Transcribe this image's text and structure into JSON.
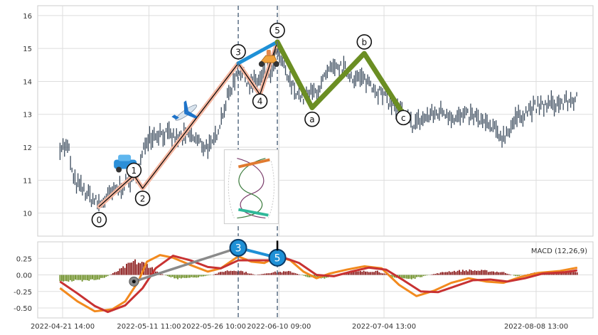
{
  "chart_data": [
    {
      "type": "candlestick",
      "ylim": [
        9.3,
        16.3
      ],
      "yticks": [
        10,
        11,
        12,
        13,
        14,
        15,
        16
      ],
      "ytick_labels": [
        "10",
        "11",
        "12",
        "13",
        "14",
        "15",
        "16"
      ],
      "grid": true,
      "x_range": [
        "2022-04-21 14:00",
        "2022-08-28 00:00"
      ],
      "price_trace": [
        [
          "2022-04-21",
          12.05
        ],
        [
          "2022-04-23",
          11.95
        ],
        [
          "2022-04-24",
          11.0
        ],
        [
          "2022-04-27",
          10.6
        ],
        [
          "2022-04-30",
          10.25
        ],
        [
          "2022-05-03",
          10.6
        ],
        [
          "2022-05-07",
          11.0
        ],
        [
          "2022-05-09",
          11.25
        ],
        [
          "2022-05-11",
          12.3
        ],
        [
          "2022-05-14",
          12.45
        ],
        [
          "2022-05-18",
          12.25
        ],
        [
          "2022-05-21",
          12.35
        ],
        [
          "2022-05-24",
          12.05
        ],
        [
          "2022-05-26",
          12.0
        ],
        [
          "2022-05-29",
          13.3
        ],
        [
          "2022-06-01",
          14.4
        ],
        [
          "2022-06-04",
          13.9
        ],
        [
          "2022-06-07",
          14.15
        ],
        [
          "2022-06-09",
          14.3
        ],
        [
          "2022-06-10",
          14.9
        ],
        [
          "2022-06-13",
          13.9
        ],
        [
          "2022-06-16",
          13.5
        ],
        [
          "2022-06-19",
          13.7
        ],
        [
          "2022-06-22",
          14.3
        ],
        [
          "2022-06-25",
          14.4
        ],
        [
          "2022-06-28",
          14.1
        ],
        [
          "2022-07-01",
          14.0
        ],
        [
          "2022-07-04",
          13.6
        ],
        [
          "2022-07-08",
          13.1
        ],
        [
          "2022-07-11",
          12.7
        ],
        [
          "2022-07-15",
          12.95
        ],
        [
          "2022-07-18",
          13.1
        ],
        [
          "2022-07-21",
          12.9
        ],
        [
          "2022-07-25",
          12.95
        ],
        [
          "2022-07-29",
          12.6
        ],
        [
          "2022-08-01",
          12.3
        ],
        [
          "2022-08-03",
          12.7
        ],
        [
          "2022-08-05",
          13.0
        ],
        [
          "2022-08-08",
          13.2
        ],
        [
          "2022-08-12",
          13.3
        ],
        [
          "2022-08-15",
          13.35
        ],
        [
          "2022-08-18",
          13.5
        ]
      ],
      "wave_lines": [
        {
          "color": "#f4b6a0",
          "width": 6,
          "points": [
            [
              "2022-04-30",
              10.2
            ],
            [
              "2022-05-08",
              11.15
            ],
            [
              "2022-05-10",
              10.75
            ],
            [
              "2022-06-01",
              14.55
            ],
            [
              "2022-06-06",
              13.6
            ],
            [
              "2022-06-10",
              15.2
            ]
          ]
        },
        {
          "color": "#000000",
          "width": 1.2,
          "points": [
            [
              "2022-04-30",
              10.2
            ],
            [
              "2022-05-08",
              11.15
            ],
            [
              "2022-05-10",
              10.75
            ],
            [
              "2022-06-01",
              14.55
            ],
            [
              "2022-06-06",
              13.6
            ],
            [
              "2022-06-10",
              15.2
            ]
          ]
        },
        {
          "color": "#1e90d6",
          "width": 5,
          "points": [
            [
              "2022-06-01",
              14.55
            ],
            [
              "2022-06-10",
              15.2
            ]
          ]
        },
        {
          "color": "#6b8e23",
          "width": 7,
          "points": [
            [
              "2022-06-10",
              15.2
            ],
            [
              "2022-06-18",
              13.2
            ],
            [
              "2022-06-30",
              14.85
            ],
            [
              "2022-07-09",
              13.0
            ]
          ]
        }
      ],
      "wave_labels": [
        {
          "text": "0",
          "x": "2022-04-30",
          "y": 9.8
        },
        {
          "text": "1",
          "x": "2022-05-08",
          "y": 11.3
        },
        {
          "text": "2",
          "x": "2022-05-10",
          "y": 10.45
        },
        {
          "text": "3",
          "x": "2022-06-01",
          "y": 14.9
        },
        {
          "text": "4",
          "x": "2022-06-06",
          "y": 13.4
        },
        {
          "text": "5",
          "x": "2022-06-10",
          "y": 15.55
        },
        {
          "text": "a",
          "x": "2022-06-18",
          "y": 12.85
        },
        {
          "text": "b",
          "x": "2022-06-30",
          "y": 15.2
        },
        {
          "text": "c",
          "x": "2022-07-09",
          "y": 12.9
        }
      ],
      "vlines": [
        "2022-06-01",
        "2022-06-10"
      ],
      "icons": [
        {
          "name": "car-icon",
          "x": "2022-05-06",
          "y": 11.45
        },
        {
          "name": "airplane-icon",
          "x": "2022-05-20",
          "y": 13.05
        },
        {
          "name": "scooter-icon",
          "x": "2022-06-08",
          "y": 14.7
        },
        {
          "name": "helix-diagram-icon",
          "x": "2022-06-04",
          "y": 10.8
        }
      ]
    },
    {
      "type": "macd",
      "title": "MACD (12,26,9)",
      "ylim": [
        -0.65,
        0.5
      ],
      "yticks": [
        -0.5,
        -0.25,
        0.0,
        0.25
      ],
      "ytick_labels": [
        "-0.50",
        "-0.25",
        "0.00",
        "0.25"
      ],
      "grid": true,
      "xticks": [
        "2022-04-21 14:00",
        "2022-05-11 11:00",
        "2022-05-26 10:00",
        "2022-06-10 09:00",
        "2022-07-04 13:00",
        "2022-08-08 13:00"
      ],
      "xtick_labels": [
        "2022-04-21 14:00",
        "2022-05-11 11:00",
        "2022-05-26 10:00",
        "2022-06-10 09:00",
        "2022-07-04 13:00",
        "2022-08-08 13:00"
      ],
      "macd_line": [
        [
          "2022-04-21",
          -0.2
        ],
        [
          "2022-04-25",
          -0.4
        ],
        [
          "2022-04-29",
          -0.55
        ],
        [
          "2022-05-03",
          -0.52
        ],
        [
          "2022-05-06",
          -0.4
        ],
        [
          "2022-05-09",
          -0.1
        ],
        [
          "2022-05-11",
          0.2
        ],
        [
          "2022-05-14",
          0.3
        ],
        [
          "2022-05-17",
          0.26
        ],
        [
          "2022-05-21",
          0.15
        ],
        [
          "2022-05-25",
          0.05
        ],
        [
          "2022-05-28",
          0.1
        ],
        [
          "2022-06-01",
          0.28
        ],
        [
          "2022-06-04",
          0.2
        ],
        [
          "2022-06-07",
          0.18
        ],
        [
          "2022-06-10",
          0.28
        ],
        [
          "2022-06-13",
          0.22
        ],
        [
          "2022-06-16",
          0.05
        ],
        [
          "2022-06-19",
          -0.05
        ],
        [
          "2022-06-22",
          0.02
        ],
        [
          "2022-06-26",
          0.08
        ],
        [
          "2022-06-30",
          0.13
        ],
        [
          "2022-07-04",
          0.1
        ],
        [
          "2022-07-08",
          -0.15
        ],
        [
          "2022-07-12",
          -0.32
        ],
        [
          "2022-07-16",
          -0.24
        ],
        [
          "2022-07-20",
          -0.12
        ],
        [
          "2022-07-24",
          -0.05
        ],
        [
          "2022-07-28",
          -0.1
        ],
        [
          "2022-08-01",
          -0.12
        ],
        [
          "2022-08-05",
          -0.03
        ],
        [
          "2022-08-09",
          0.03
        ],
        [
          "2022-08-14",
          0.06
        ],
        [
          "2022-08-18",
          0.11
        ]
      ],
      "signal_line": [
        [
          "2022-04-21",
          -0.1
        ],
        [
          "2022-04-25",
          -0.28
        ],
        [
          "2022-04-29",
          -0.47
        ],
        [
          "2022-05-02",
          -0.56
        ],
        [
          "2022-05-06",
          -0.46
        ],
        [
          "2022-05-10",
          -0.2
        ],
        [
          "2022-05-13",
          0.1
        ],
        [
          "2022-05-17",
          0.29
        ],
        [
          "2022-05-21",
          0.22
        ],
        [
          "2022-05-25",
          0.12
        ],
        [
          "2022-05-28",
          0.1
        ],
        [
          "2022-06-01",
          0.22
        ],
        [
          "2022-06-05",
          0.22
        ],
        [
          "2022-06-09",
          0.22
        ],
        [
          "2022-06-12",
          0.25
        ],
        [
          "2022-06-15",
          0.18
        ],
        [
          "2022-06-19",
          0.0
        ],
        [
          "2022-06-23",
          -0.02
        ],
        [
          "2022-06-27",
          0.05
        ],
        [
          "2022-07-01",
          0.11
        ],
        [
          "2022-07-05",
          0.08
        ],
        [
          "2022-07-09",
          -0.08
        ],
        [
          "2022-07-13",
          -0.25
        ],
        [
          "2022-07-17",
          -0.26
        ],
        [
          "2022-07-21",
          -0.17
        ],
        [
          "2022-07-25",
          -0.08
        ],
        [
          "2022-07-29",
          -0.07
        ],
        [
          "2022-08-02",
          -0.1
        ],
        [
          "2022-08-06",
          -0.05
        ],
        [
          "2022-08-10",
          0.02
        ],
        [
          "2022-08-15",
          0.04
        ],
        [
          "2022-08-18",
          0.07
        ]
      ],
      "histogram_envelope": [
        [
          "2022-04-21",
          -0.08
        ],
        [
          "2022-04-26",
          -0.1
        ],
        [
          "2022-05-01",
          -0.05
        ],
        [
          "2022-05-04",
          0.05
        ],
        [
          "2022-05-08",
          0.2
        ],
        [
          "2022-05-11",
          0.16
        ],
        [
          "2022-05-14",
          0.02
        ],
        [
          "2022-05-18",
          -0.06
        ],
        [
          "2022-05-22",
          -0.04
        ],
        [
          "2022-05-26",
          0.0
        ],
        [
          "2022-05-29",
          0.06
        ],
        [
          "2022-06-01",
          0.07
        ],
        [
          "2022-06-05",
          0.0
        ],
        [
          "2022-06-09",
          0.04
        ],
        [
          "2022-06-13",
          0.05
        ],
        [
          "2022-06-17",
          -0.03
        ],
        [
          "2022-06-21",
          -0.05
        ],
        [
          "2022-06-25",
          0.03
        ],
        [
          "2022-06-29",
          0.05
        ],
        [
          "2022-07-03",
          0.06
        ],
        [
          "2022-07-07",
          -0.04
        ],
        [
          "2022-07-11",
          -0.06
        ],
        [
          "2022-07-15",
          0.0
        ],
        [
          "2022-07-19",
          0.05
        ],
        [
          "2022-07-24",
          0.07
        ],
        [
          "2022-07-28",
          0.06
        ],
        [
          "2022-08-01",
          0.04
        ],
        [
          "2022-08-04",
          -0.02
        ],
        [
          "2022-08-08",
          0.03
        ],
        [
          "2022-08-12",
          0.05
        ],
        [
          "2022-08-18",
          0.04
        ]
      ],
      "overlay_lines": [
        {
          "color": "#8a8a8a",
          "width": 3.5,
          "points": [
            [
              "2022-05-08",
              -0.1
            ],
            [
              "2022-06-01",
              0.41
            ]
          ]
        },
        {
          "color": "#1e90d6",
          "width": 4,
          "points": [
            [
              "2022-06-01",
              0.41
            ],
            [
              "2022-06-10",
              0.26
            ]
          ]
        }
      ],
      "markers": [
        {
          "text": "",
          "x": "2022-05-08",
          "y": -0.1,
          "style": "dot"
        },
        {
          "text": "3",
          "x": "2022-06-01",
          "y": 0.41,
          "style": "badge"
        },
        {
          "text": "5",
          "x": "2022-06-10",
          "y": 0.26,
          "style": "badge"
        }
      ],
      "vlines": [
        "2022-06-01",
        "2022-06-10"
      ]
    }
  ]
}
